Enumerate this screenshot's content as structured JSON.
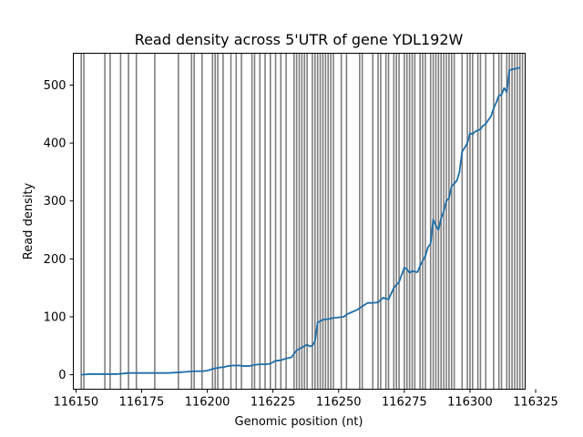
{
  "chart_data": {
    "type": "line",
    "title": "Read density across 5'UTR of gene YDL192W",
    "xlabel": "Genomic position (nt)",
    "ylabel": "Read density",
    "xlim": [
      116149,
      116321
    ],
    "ylim": [
      -25,
      555
    ],
    "xticks": [
      {
        "value": 116150,
        "label": "116150"
      },
      {
        "value": 116175,
        "label": "116175"
      },
      {
        "value": 116200,
        "label": "116200"
      },
      {
        "value": 116225,
        "label": "116225"
      },
      {
        "value": 116250,
        "label": "116250"
      },
      {
        "value": 116275,
        "label": "116275"
      },
      {
        "value": 116300,
        "label": "116300"
      },
      {
        "value": 116325,
        "label": "116325"
      }
    ],
    "yticks": [
      {
        "value": 0,
        "label": "0"
      },
      {
        "value": 100,
        "label": "100"
      },
      {
        "value": 200,
        "label": "200"
      },
      {
        "value": 300,
        "label": "300"
      },
      {
        "value": 400,
        "label": "400"
      },
      {
        "value": 500,
        "label": "500"
      }
    ],
    "grid": false,
    "colors": {
      "line": "#1f6fa8",
      "vlines": "#7f7f7f"
    },
    "vlines": [
      116152,
      116153,
      116161,
      116163,
      116167,
      116170,
      116173,
      116180,
      116189,
      116194,
      116195,
      116198,
      116202,
      116203,
      116204,
      116206,
      116209,
      116211,
      116213,
      116217,
      116218,
      116220,
      116222,
      116224,
      116226,
      116228,
      116230,
      116233,
      116234,
      116235,
      116236,
      116237,
      116238,
      116240,
      116241,
      116242,
      116243,
      116244,
      116245,
      116246,
      116247,
      116248,
      116251,
      116253,
      116258,
      116259,
      116263,
      116265,
      116266,
      116268,
      116269,
      116271,
      116272,
      116273,
      116275,
      116276,
      116277,
      116278,
      116279,
      116281,
      116282,
      116283,
      116285,
      116286,
      116287,
      116288,
      116289,
      116290,
      116291,
      116292,
      116293,
      116294,
      116297,
      116299,
      116300,
      116301,
      116303,
      116304,
      116306,
      116309,
      116311,
      116312,
      116314,
      116315,
      116316,
      116317,
      116318,
      116319,
      116320
    ],
    "series": [
      {
        "x": [
          116152,
          116155,
          116160,
          116165,
          116168,
          116170,
          116175,
          116180,
          116185,
          116189,
          116192,
          116195,
          116198,
          116200,
          116202,
          116204,
          116206,
          116208,
          116210,
          116212,
          116214,
          116216,
          116218,
          116220,
          116222,
          116224,
          116226,
          116228,
          116230,
          116232,
          116234,
          116236,
          116238,
          116239,
          116240,
          116241,
          116242,
          116244,
          116246,
          116248,
          116250,
          116252,
          116253,
          116255,
          116257,
          116259,
          116261,
          116263,
          116265,
          116267,
          116269,
          116271,
          116273,
          116275,
          116276,
          116277,
          116278,
          116280,
          116281,
          116283,
          116284,
          116285,
          116286,
          116287,
          116288,
          116289,
          116290,
          116291,
          116292,
          116293,
          116294,
          116295,
          116296,
          116297,
          116298,
          116299,
          116300,
          116301,
          116302,
          116303,
          116304,
          116305,
          116306,
          116307,
          116308,
          116309,
          116310,
          116311,
          116312,
          116313,
          116314,
          116315,
          116317,
          116319
        ],
        "y": [
          0,
          1,
          1,
          1,
          2,
          3,
          3,
          3,
          3,
          4,
          5,
          6,
          6,
          7,
          10,
          12,
          13,
          15,
          16,
          16,
          15,
          15,
          17,
          18,
          18,
          19,
          24,
          25,
          28,
          30,
          42,
          47,
          52,
          49,
          50,
          58,
          90,
          95,
          96,
          98,
          99,
          100,
          104,
          108,
          112,
          118,
          124,
          124,
          125,
          133,
          130,
          150,
          160,
          185,
          182,
          176,
          179,
          177,
          188,
          205,
          220,
          226,
          268,
          258,
          250,
          270,
          282,
          300,
          305,
          325,
          330,
          335,
          350,
          385,
          392,
          400,
          417,
          415,
          420,
          422,
          424,
          430,
          433,
          440,
          446,
          460,
          470,
          482,
          483,
          495,
          488,
          526,
          528,
          530
        ]
      }
    ]
  }
}
